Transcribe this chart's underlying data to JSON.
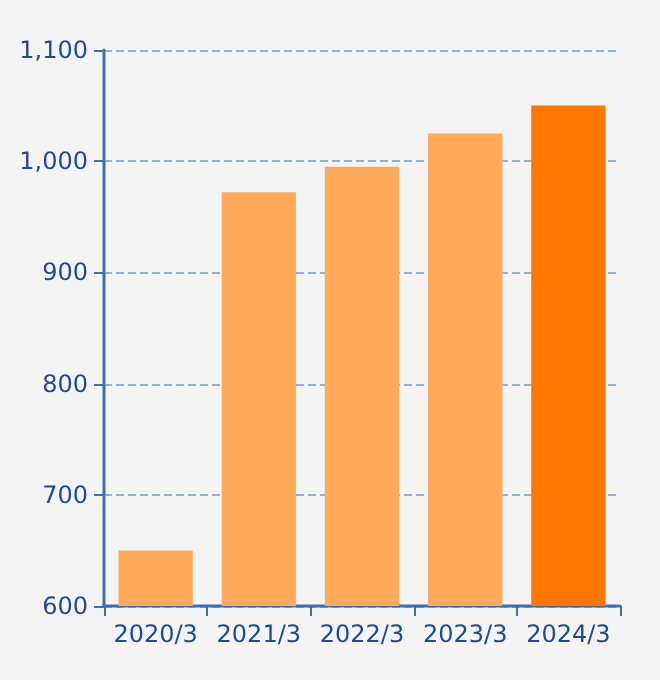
{
  "chart_data": {
    "type": "bar",
    "categories": [
      "2020/3",
      "2021/3",
      "2022/3",
      "2023/3",
      "2024/3"
    ],
    "values": [
      650,
      972,
      995,
      1025,
      1050
    ],
    "colors": [
      "#ffaa5a",
      "#ffaa5a",
      "#ffaa5a",
      "#ffaa5a",
      "#ff7700"
    ],
    "ylim": [
      600,
      1100
    ],
    "yticks": [
      600,
      700,
      800,
      900,
      {
        "value": 1000,
        "label": "1,000"
      },
      {
        "value": 1100,
        "label": "1,100"
      }
    ],
    "grid": "y"
  }
}
